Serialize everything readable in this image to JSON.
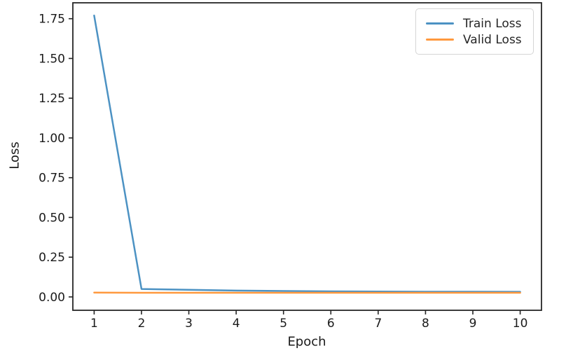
{
  "chart_data": {
    "type": "line",
    "title": "",
    "xlabel": "Epoch",
    "ylabel": "Loss",
    "x": [
      1,
      2,
      3,
      4,
      5,
      6,
      7,
      8,
      9,
      10
    ],
    "series": [
      {
        "name": "Train Loss",
        "color": "#4c92c3",
        "values": [
          1.77,
          0.05,
          0.045,
          0.04,
          0.037,
          0.035,
          0.034,
          0.033,
          0.033,
          0.032
        ]
      },
      {
        "name": "Valid Loss",
        "color": "#ff993e",
        "values": [
          0.027,
          0.026,
          0.026,
          0.026,
          0.026,
          0.026,
          0.026,
          0.026,
          0.026,
          0.026
        ]
      }
    ],
    "xlim": [
      0.55,
      10.45
    ],
    "ylim": [
      -0.084,
      1.85
    ],
    "xticks": [
      1,
      2,
      3,
      4,
      5,
      6,
      7,
      8,
      9,
      10
    ],
    "xtick_labels": [
      "1",
      "2",
      "3",
      "4",
      "5",
      "6",
      "7",
      "8",
      "9",
      "10"
    ],
    "yticks": [
      0.0,
      0.25,
      0.5,
      0.75,
      1.0,
      1.25,
      1.5,
      1.75
    ],
    "ytick_labels": [
      "0.00",
      "0.25",
      "0.50",
      "0.75",
      "1.00",
      "1.25",
      "1.50",
      "1.75"
    ],
    "legend_position": "upper right",
    "grid": false,
    "colors": {
      "spine": "#262626",
      "tick_text": "#1a1a1a",
      "legend_border": "#d5d5d5"
    }
  }
}
